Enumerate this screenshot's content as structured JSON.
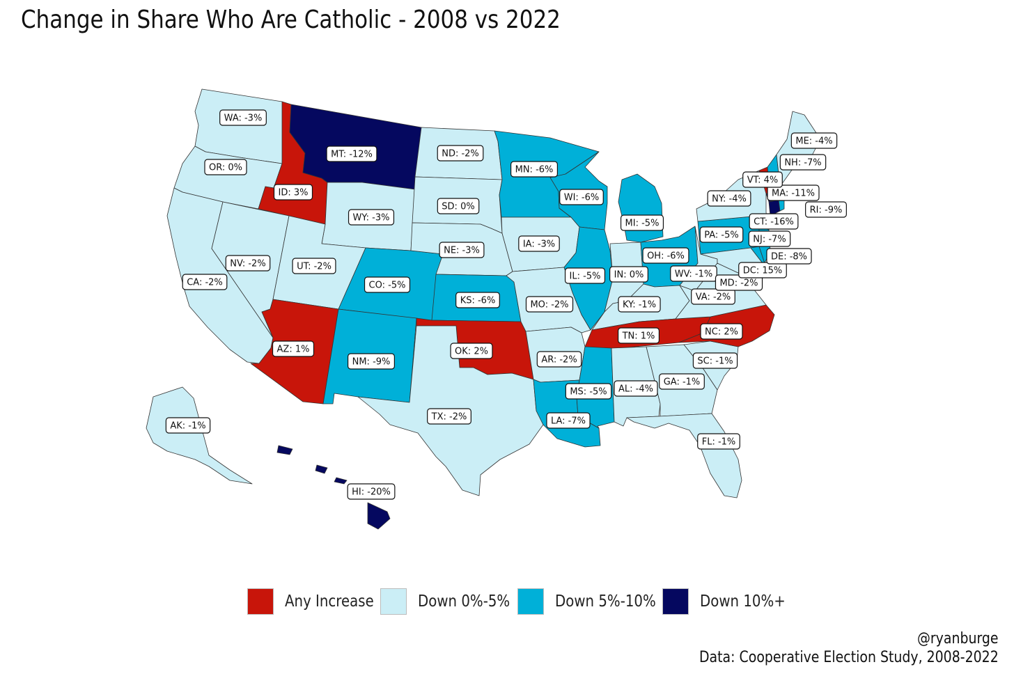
{
  "title": "Change in Share Who Are Catholic - 2008 vs 2022",
  "colors": {
    "any_increase": "#c8150a",
    "down_0_5": "#cbeef6",
    "down_5_10": "#00b0d8",
    "down_10_plus": "#05085f"
  },
  "legend": [
    {
      "label": "Any Increase",
      "color": "#c8150a"
    },
    {
      "label": "Down 0%-5%",
      "color": "#cbeef6"
    },
    {
      "label": "Down 5%-10%",
      "color": "#00b0d8"
    },
    {
      "label": "Down 10%+",
      "color": "#05085f"
    }
  ],
  "states": [
    {
      "abbr": "WA",
      "label": "WA: -3%",
      "change": -3
    },
    {
      "abbr": "OR",
      "label": "OR: 0%",
      "change": 0
    },
    {
      "abbr": "CA",
      "label": "CA: -2%",
      "change": -2
    },
    {
      "abbr": "ID",
      "label": "ID: 3%",
      "change": 3
    },
    {
      "abbr": "NV",
      "label": "NV: -2%",
      "change": -2
    },
    {
      "abbr": "MT",
      "label": "MT: -12%",
      "change": -12
    },
    {
      "abbr": "WY",
      "label": "WY: -3%",
      "change": -3
    },
    {
      "abbr": "UT",
      "label": "UT: -2%",
      "change": -2
    },
    {
      "abbr": "AZ",
      "label": "AZ: 1%",
      "change": 1
    },
    {
      "abbr": "CO",
      "label": "CO: -5%",
      "change": -5
    },
    {
      "abbr": "NM",
      "label": "NM: -9%",
      "change": -9
    },
    {
      "abbr": "ND",
      "label": "ND: -2%",
      "change": -2
    },
    {
      "abbr": "SD",
      "label": "SD: 0%",
      "change": 0
    },
    {
      "abbr": "NE",
      "label": "NE: -3%",
      "change": -3
    },
    {
      "abbr": "KS",
      "label": "KS: -6%",
      "change": -6
    },
    {
      "abbr": "OK",
      "label": "OK: 2%",
      "change": 2
    },
    {
      "abbr": "TX",
      "label": "TX: -2%",
      "change": -2
    },
    {
      "abbr": "MN",
      "label": "MN: -6%",
      "change": -6
    },
    {
      "abbr": "IA",
      "label": "IA: -3%",
      "change": -3
    },
    {
      "abbr": "MO",
      "label": "MO: -2%",
      "change": -2
    },
    {
      "abbr": "AR",
      "label": "AR: -2%",
      "change": -2
    },
    {
      "abbr": "LA",
      "label": "LA: -7%",
      "change": -7
    },
    {
      "abbr": "WI",
      "label": "WI: -6%",
      "change": -6
    },
    {
      "abbr": "IL",
      "label": "IL: -5%",
      "change": -5
    },
    {
      "abbr": "MI",
      "label": "MI: -5%",
      "change": -5
    },
    {
      "abbr": "IN",
      "label": "IN: 0%",
      "change": 0
    },
    {
      "abbr": "OH",
      "label": "OH: -6%",
      "change": -6
    },
    {
      "abbr": "KY",
      "label": "KY: -1%",
      "change": -1
    },
    {
      "abbr": "TN",
      "label": "TN: 1%",
      "change": 1
    },
    {
      "abbr": "MS",
      "label": "MS: -5%",
      "change": -5
    },
    {
      "abbr": "AL",
      "label": "AL: -4%",
      "change": -4
    },
    {
      "abbr": "GA",
      "label": "GA: -1%",
      "change": -1
    },
    {
      "abbr": "FL",
      "label": "FL: -1%",
      "change": -1
    },
    {
      "abbr": "SC",
      "label": "SC: -1%",
      "change": -1
    },
    {
      "abbr": "NC",
      "label": "NC: 2%",
      "change": 2
    },
    {
      "abbr": "VA",
      "label": "VA: -2%",
      "change": -2
    },
    {
      "abbr": "WV",
      "label": "WV: -1%",
      "change": -1
    },
    {
      "abbr": "MD",
      "label": "MD: -2%",
      "change": -2
    },
    {
      "abbr": "DC",
      "label": "DC: 15%",
      "change": 15
    },
    {
      "abbr": "DE",
      "label": "DE: -8%",
      "change": -8
    },
    {
      "abbr": "NJ",
      "label": "NJ: -7%",
      "change": -7
    },
    {
      "abbr": "PA",
      "label": "PA: -5%",
      "change": -5
    },
    {
      "abbr": "NY",
      "label": "NY: -4%",
      "change": -4
    },
    {
      "abbr": "CT",
      "label": "CT: -16%",
      "change": -16
    },
    {
      "abbr": "RI",
      "label": "RI: -9%",
      "change": -9
    },
    {
      "abbr": "MA",
      "label": "MA: -11%",
      "change": -11
    },
    {
      "abbr": "VT",
      "label": "VT: 4%",
      "change": 4
    },
    {
      "abbr": "NH",
      "label": "NH: -7%",
      "change": -7
    },
    {
      "abbr": "ME",
      "label": "ME: -4%",
      "change": -4
    },
    {
      "abbr": "AK",
      "label": "AK: -1%",
      "change": -1
    },
    {
      "abbr": "HI",
      "label": "HI: -20%",
      "change": -20
    }
  ],
  "credit": {
    "handle": "@ryanburge",
    "source": "Data: Cooperative Election Study, 2008-2022"
  }
}
